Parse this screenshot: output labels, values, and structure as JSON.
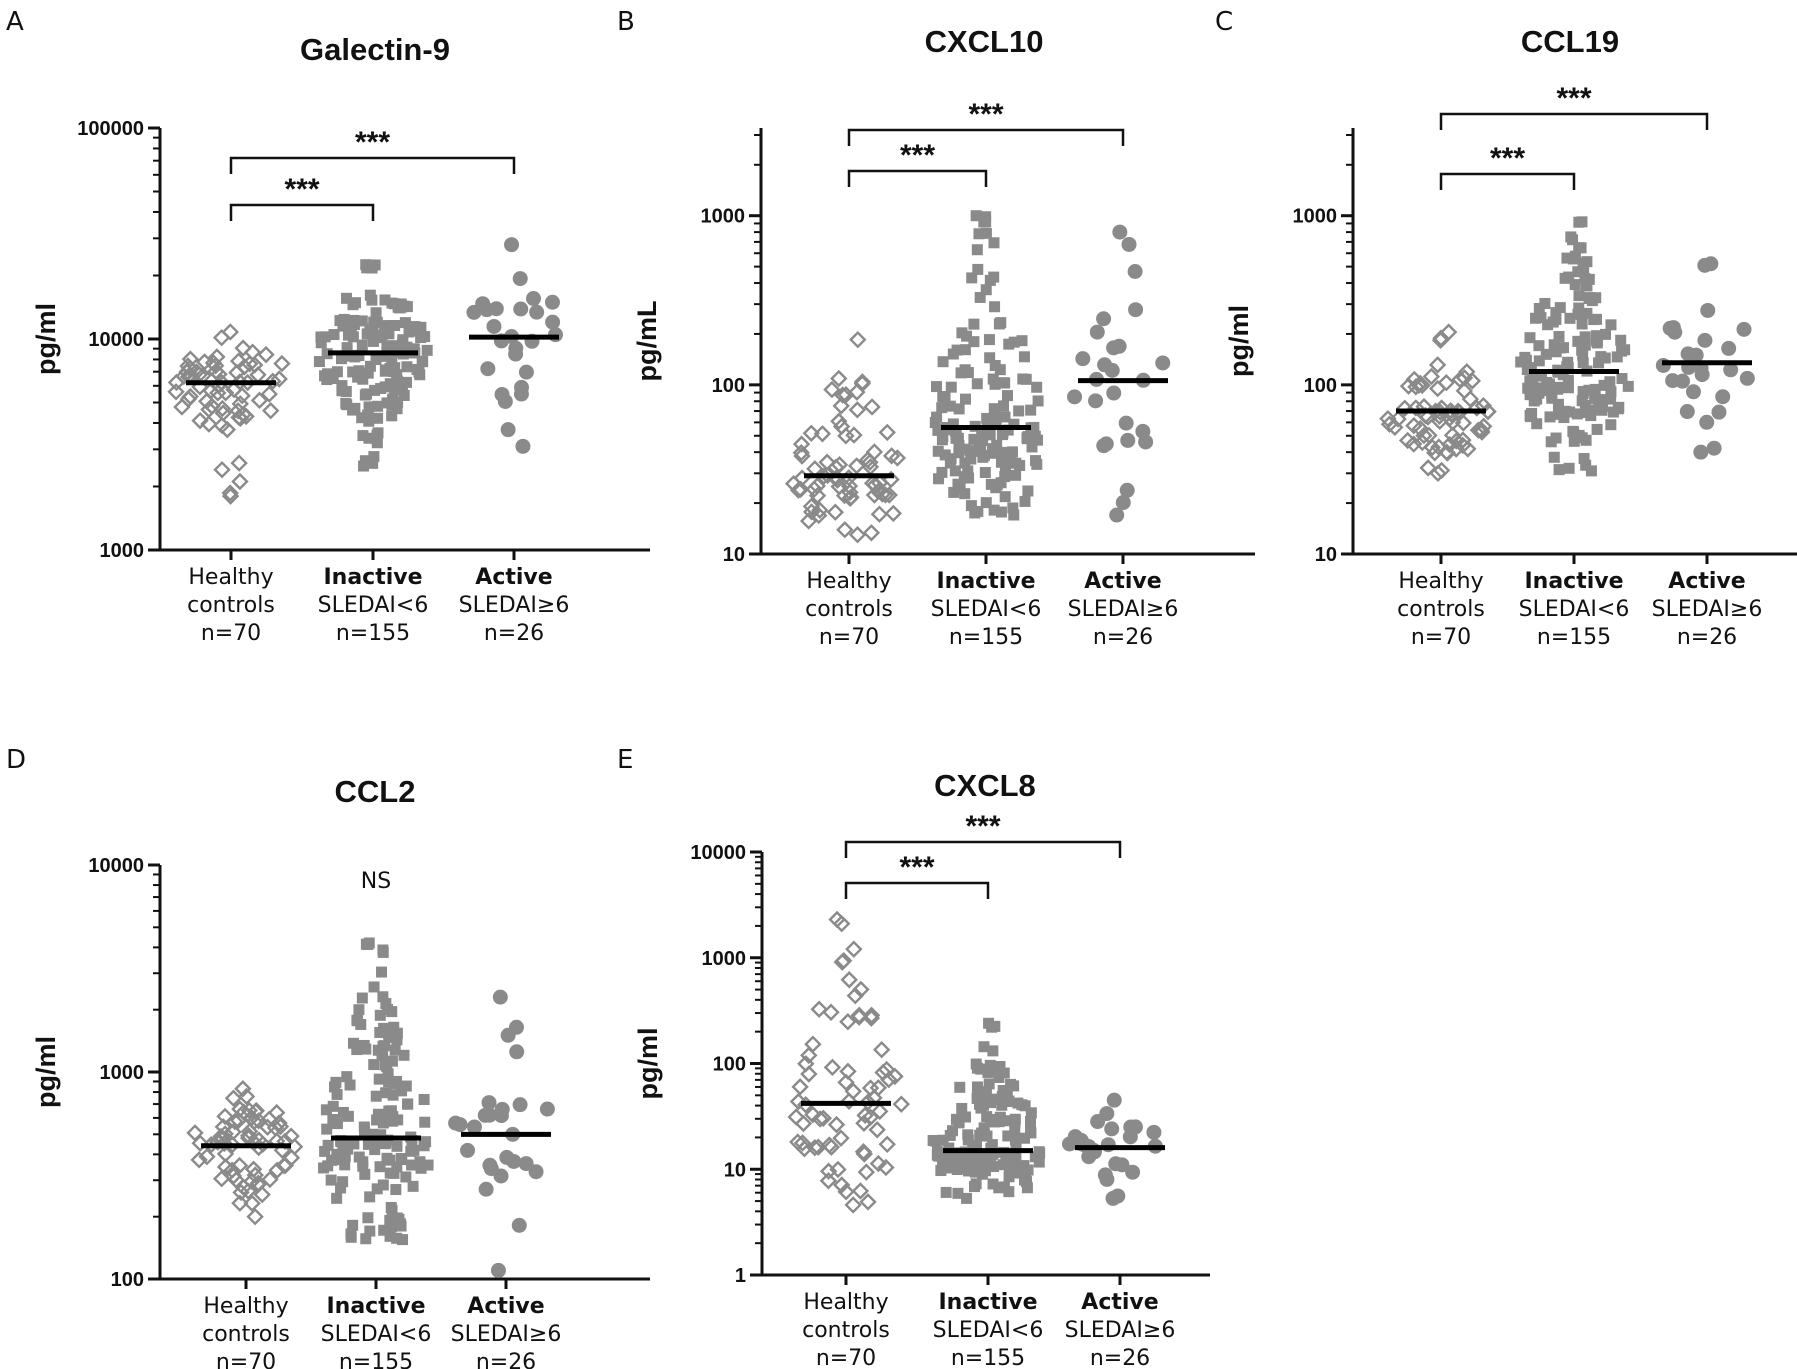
{
  "figure": {
    "categories": [
      {
        "name": "Healthy",
        "sub": "controls",
        "n": "n=70",
        "bold": false,
        "marker": "diamond"
      },
      {
        "name": "Inactive",
        "sub": "SLEDAI<6",
        "n": "n=155",
        "bold": true,
        "marker": "square"
      },
      {
        "name": "Active",
        "sub": "SLEDAI≥6",
        "n": "n=26",
        "bold": true,
        "marker": "circle"
      }
    ],
    "point_color": "#8a8a8a",
    "median_color": "#000000"
  },
  "chart_data": [
    {
      "panel": "A",
      "type": "scatter",
      "title": "Galectin-9",
      "ylabel": "pg/ml",
      "yscale": "log",
      "ylim": [
        1000,
        100000
      ],
      "ytick_labels": [
        "1000",
        "10000",
        "100000"
      ],
      "medians": [
        6200,
        8600,
        10200
      ],
      "ranges": [
        [
          1800,
          10800
        ],
        [
          2500,
          22500
        ],
        [
          3100,
          28000
        ]
      ],
      "significance": [
        {
          "from": 0,
          "to": 1,
          "label": "***"
        },
        {
          "from": 0,
          "to": 2,
          "label": "***"
        }
      ]
    },
    {
      "panel": "B",
      "type": "scatter",
      "title": "CXCL10",
      "ylabel": "pg/mL",
      "yscale": "log",
      "ylim": [
        10,
        3300
      ],
      "ytick_labels": [
        "10",
        "100",
        "1000"
      ],
      "medians": [
        29,
        56,
        106
      ],
      "ranges": [
        [
          13,
          185
        ],
        [
          17,
          1000
        ],
        [
          17,
          800
        ]
      ],
      "significance": [
        {
          "from": 0,
          "to": 1,
          "label": "***"
        },
        {
          "from": 0,
          "to": 2,
          "label": "***"
        }
      ]
    },
    {
      "panel": "C",
      "type": "scatter",
      "title": "CCL19",
      "ylabel": "pg/ml",
      "yscale": "log",
      "ylim": [
        10,
        3300
      ],
      "ytick_labels": [
        "10",
        "100",
        "1000"
      ],
      "medians": [
        70,
        120,
        135
      ],
      "ranges": [
        [
          30,
          205
        ],
        [
          31,
          920
        ],
        [
          40,
          520
        ]
      ],
      "significance": [
        {
          "from": 0,
          "to": 1,
          "label": "***"
        },
        {
          "from": 0,
          "to": 2,
          "label": "***"
        }
      ]
    },
    {
      "panel": "D",
      "type": "scatter",
      "title": "CCL2",
      "ylabel": "pg/ml",
      "yscale": "log",
      "ylim": [
        100,
        10000
      ],
      "ytick_labels": [
        "100",
        "1000",
        "10000"
      ],
      "medians": [
        440,
        480,
        500
      ],
      "ranges": [
        [
          200,
          830
        ],
        [
          155,
          4200
        ],
        [
          110,
          2300
        ]
      ],
      "annotation": "NS",
      "significance": []
    },
    {
      "panel": "E",
      "type": "scatter",
      "title": "CXCL8",
      "ylabel": "pg/ml",
      "yscale": "log",
      "ylim": [
        1,
        10000
      ],
      "ytick_labels": [
        "1",
        "10",
        "100",
        "1000",
        "10000"
      ],
      "medians": [
        42,
        15,
        16
      ],
      "ranges": [
        [
          4.6,
          2300
        ],
        [
          5.3,
          240
        ],
        [
          5.3,
          45
        ]
      ],
      "significance": [
        {
          "from": 0,
          "to": 1,
          "label": "***"
        },
        {
          "from": 0,
          "to": 2,
          "label": "***"
        }
      ]
    }
  ]
}
